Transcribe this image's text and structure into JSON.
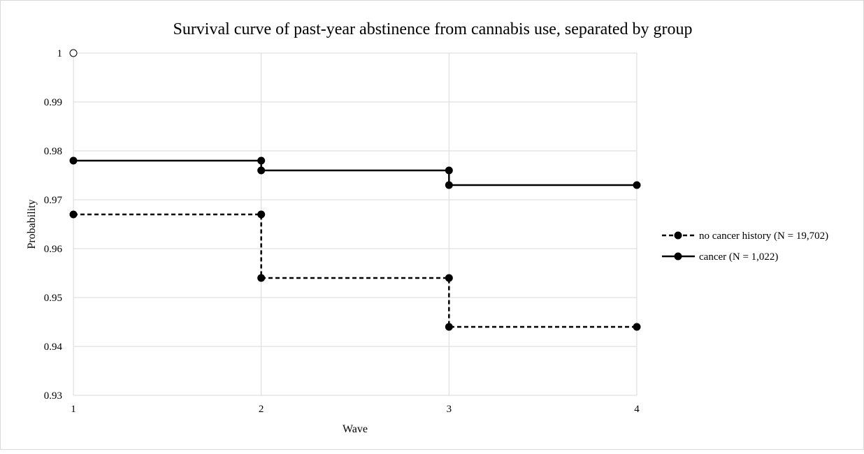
{
  "chart_data": {
    "type": "line",
    "title": "Survival curve of past-year abstinence from cannabis use, separated by group",
    "xlabel": "Wave",
    "ylabel": "Probability",
    "x_ticks": [
      "1",
      "2",
      "3",
      "4"
    ],
    "y_ticks": [
      "0.93",
      "0.94",
      "0.95",
      "0.96",
      "0.97",
      "0.98",
      "0.99",
      "1"
    ],
    "xlim": [
      1,
      4
    ],
    "ylim": [
      0.93,
      1.0
    ],
    "grid": true,
    "legend_position": "right",
    "series": [
      {
        "name": "no cancer history (N = 19,702)",
        "line_style": "dashed",
        "points": [
          [
            1,
            0.967
          ],
          [
            2,
            0.967
          ],
          [
            2,
            0.954
          ],
          [
            3,
            0.954
          ],
          [
            3,
            0.944
          ],
          [
            4,
            0.944
          ]
        ]
      },
      {
        "name": "cancer (N = 1,022)",
        "line_style": "solid",
        "points": [
          [
            1,
            0.978
          ],
          [
            2,
            0.978
          ],
          [
            2,
            0.976
          ],
          [
            3,
            0.976
          ],
          [
            3,
            0.973
          ],
          [
            4,
            0.973
          ]
        ]
      }
    ],
    "annotations": [
      {
        "x": 1,
        "y": 1.0,
        "marker": "open-circle"
      }
    ]
  }
}
